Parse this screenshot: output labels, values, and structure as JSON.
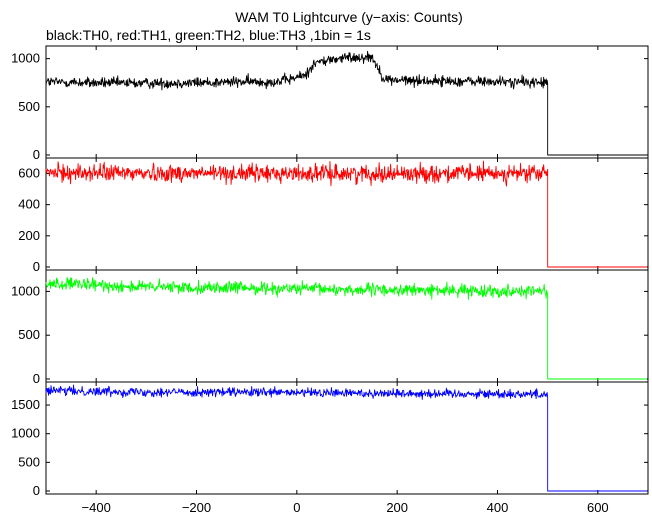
{
  "chart_data": {
    "type": "line",
    "title": "WAM T0 Lightcurve (y−axis: Counts)",
    "subtitle": "black:TH0, red:TH1, green:TH2, blue:TH3 ,1bin = 1s",
    "xlim": [
      -500,
      700
    ],
    "x_ticks": [
      -400,
      -200,
      0,
      200,
      400,
      600
    ],
    "x_tick_labels": [
      "−400",
      "−200",
      "0",
      "200",
      "400",
      "600"
    ],
    "bin_seconds": 1,
    "data_end_x": 500,
    "grid": false,
    "panels": [
      {
        "name": "TH0",
        "color": "#000000",
        "ylim": [
          0,
          1100
        ],
        "y_ticks": [
          0,
          500,
          1000
        ],
        "y_tick_labels": [
          "0",
          "500",
          "1000"
        ],
        "profile": [
          [
            -500,
            760
          ],
          [
            -400,
            748
          ],
          [
            -300,
            745
          ],
          [
            -200,
            750
          ],
          [
            -100,
            760
          ],
          [
            -40,
            760
          ],
          [
            -10,
            790
          ],
          [
            10,
            820
          ],
          [
            20,
            840
          ],
          [
            30,
            930
          ],
          [
            40,
            960
          ],
          [
            70,
            990
          ],
          [
            100,
            1010
          ],
          [
            150,
            1020
          ],
          [
            160,
            920
          ],
          [
            170,
            820
          ],
          [
            180,
            780
          ],
          [
            250,
            770
          ],
          [
            400,
            760
          ],
          [
            500,
            752
          ]
        ],
        "noise": 28
      },
      {
        "name": "TH1",
        "color": "#ff0000",
        "ylim": [
          0,
          680
        ],
        "y_ticks": [
          0,
          200,
          400,
          600
        ],
        "y_tick_labels": [
          "0",
          "200",
          "400",
          "600"
        ],
        "profile": [
          [
            -500,
            605
          ],
          [
            -200,
            602
          ],
          [
            0,
            600
          ],
          [
            200,
            600
          ],
          [
            500,
            600
          ]
        ],
        "noise": 28
      },
      {
        "name": "TH2",
        "color": "#00ff00",
        "ylim": [
          0,
          1210
        ],
        "y_ticks": [
          0,
          500,
          1000
        ],
        "y_tick_labels": [
          "0",
          "500",
          "1000"
        ],
        "profile": [
          [
            -500,
            1090
          ],
          [
            -300,
            1050
          ],
          [
            -100,
            1040
          ],
          [
            100,
            1020
          ],
          [
            300,
            1010
          ],
          [
            500,
            1005
          ]
        ],
        "noise": 35
      },
      {
        "name": "TH3",
        "color": "#0000ff",
        "ylim": [
          0,
          1850
        ],
        "y_ticks": [
          0,
          500,
          1000,
          1500
        ],
        "y_tick_labels": [
          "0",
          "500",
          "1000",
          "1500"
        ],
        "profile": [
          [
            -500,
            1750
          ],
          [
            -300,
            1730
          ],
          [
            -100,
            1720
          ],
          [
            100,
            1710
          ],
          [
            300,
            1700
          ],
          [
            500,
            1690
          ]
        ],
        "noise": 40
      }
    ]
  }
}
